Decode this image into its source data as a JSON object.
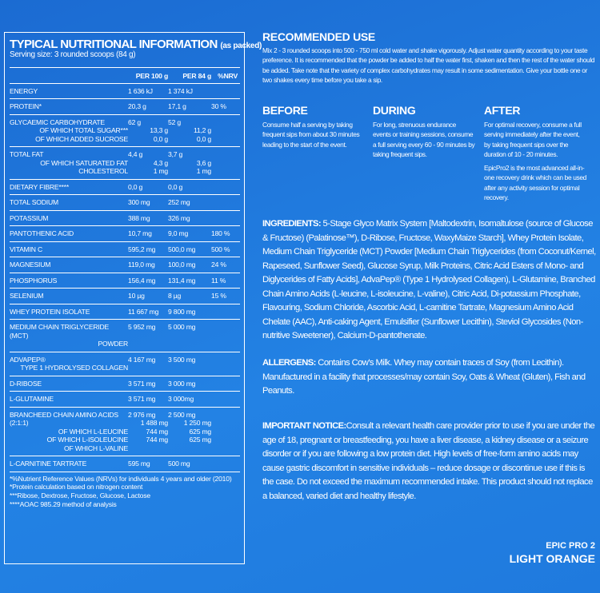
{
  "nutrition": {
    "title": "TYPICAL NUTRITIONAL INFORMATION",
    "title_note": "(as packed)",
    "serving": "Serving size: 3 rounded scoops (84 g)",
    "columns": [
      "PER 100 g",
      "PER 84 g",
      "%NRV"
    ],
    "groups": [
      [
        {
          "label": "ENERGY",
          "per_100g": "1 636 kJ",
          "per_84g": "1 374 kJ"
        }
      ],
      [
        {
          "label": "PROTEIN*",
          "per_100g": "20,3 g",
          "per_84g": "17,1 g",
          "nrv": "30 %"
        }
      ],
      [
        {
          "label": "GLYCAEMIC CARBOHYDRATE",
          "per_100g": "62 g",
          "per_84g": "52 g"
        },
        {
          "label": "OF WHICH TOTAL SUGAR***",
          "per_100g": "13,3 g",
          "per_84g": "11,2 g"
        },
        {
          "label": "OF WHICH ADDED SUCROSE",
          "per_100g": "0,0 g",
          "per_84g": "0,0 g"
        }
      ],
      [
        {
          "label": "TOTAL FAT",
          "per_100g": "4,4 g",
          "per_84g": "3,7 g"
        },
        {
          "label": "OF WHICH SATURATED FAT",
          "per_100g": "4,3 g",
          "per_84g": "3,6 g"
        },
        {
          "label": "CHOLESTEROL",
          "per_100g": "1 mg",
          "per_84g": "1 mg"
        }
      ],
      [
        {
          "label": "DIETARY FIBRE****",
          "per_100g": "0,0 g",
          "per_84g": "0,0 g"
        }
      ],
      [
        {
          "label": "TOTAL SODIUM",
          "per_100g": "300 mg",
          "per_84g": "252 mg"
        }
      ],
      [
        {
          "label": "POTASSIUM",
          "per_100g": "388 mg",
          "per_84g": "326 mg"
        }
      ],
      [
        {
          "label": "PANTOTHENIC ACID",
          "per_100g": "10,7 mg",
          "per_84g": "9,0 mg",
          "nrv": "180 %"
        }
      ],
      [
        {
          "label": "VITAMIN C",
          "per_100g": "595,2 mg",
          "per_84g": "500,0 mg",
          "nrv": "500 %"
        }
      ],
      [
        {
          "label": "MAGNESIUM",
          "per_100g": "119,0 mg",
          "per_84g": "100,0 mg",
          "nrv": "24 %"
        }
      ],
      [
        {
          "label": "PHOSPHORUS",
          "per_100g": "156,4 mg",
          "per_84g": "131,4 mg",
          "nrv": "11 %"
        }
      ],
      [
        {
          "label": "SELENIUM",
          "per_100g": "10 µg",
          "per_84g": "8 µg",
          "nrv": "15 %"
        }
      ],
      [
        {
          "label": "WHEY PROTEIN ISOLATE",
          "per_100g": "11 667 mg",
          "per_84g": "9 800 mg"
        }
      ],
      [
        {
          "label": "MEDIUM CHAIN TRIGLYCERIDE (MCT)",
          "label_continued": "POWDER",
          "per_100g": "5 952 mg",
          "per_84g": "5 000 mg"
        }
      ],
      [
        {
          "label": "ADVAPEP®",
          "label_continued": "TYPE 1 HYDROLYSED COLLAGEN",
          "per_100g": "4 167 mg",
          "per_84g": "3 500 mg"
        }
      ],
      [
        {
          "label": "D-RIBOSE",
          "per_100g": "3 571 mg",
          "per_84g": "3 000 mg"
        }
      ],
      [
        {
          "label": "L-GLUTAMINE",
          "per_100g": "3 571 mg",
          "per_84g": "3 000mg"
        }
      ],
      [
        {
          "label": "BRANCHEED CHAIN AMINO ACIDS (2:1:1)",
          "per_100g": "2 976 mg",
          "per_84g": "2 500 mg"
        },
        {
          "label": "OF WHICH L-LEUCINE",
          "per_100g": "1 488 mg",
          "per_84g": "1 250 mg"
        },
        {
          "label": "OF WHICH L-ISOLEUCINE",
          "per_100g": "744 mg",
          "per_84g": "625 mg"
        },
        {
          "label": "OF WHICH L-VALINE",
          "per_100g": "744 mg",
          "per_84g": "625 mg"
        }
      ],
      [
        {
          "label": "L-CARNITINE TARTRATE",
          "per_100g": "595 mg",
          "per_84g": "500 mg"
        }
      ]
    ],
    "footnotes": [
      "*%Nutrient Reference Values (NRVs) for individuals 4 years and older (2010)",
      "*Protein calculation based on nitrogen content",
      "***Ribose, Dextrose, Fructose, Glucose, Lactose",
      "****AOAC 985.29 method of analysis"
    ]
  },
  "recommended_use": {
    "title": "RECOMMENDED USE",
    "text": "Mix 2 - 3 rounded scoops into 500 - 750 ml cold water and shake vigorously. Adjust water quantity according to your taste preference. It is recommended that the powder be added to half the water first, shaken and then the rest of the water should be added. Take note that the variety of complex carbohydrates may result in some sedimentation. Give your bottle one or two shakes every time before you take a sip.",
    "phases": [
      {
        "title": "BEFORE",
        "text": "Consume half a serving by taking frequent sips from about 30 minutes leading to the start of the event."
      },
      {
        "title": "DURING",
        "text": "For long, strenuous endurance events or training sessions, consume a full serving every 60 - 90 minutes by taking frequent sips."
      },
      {
        "title": "AFTER",
        "text": "For optimal recovery, consume a full serving immediately after the event, by taking frequent sips over the duration of 10 - 20 minutes.",
        "note": "EpicPro2 is the most advanced all-in-one recovery drink which can be used after any activity session for optimal recovery."
      }
    ]
  },
  "ingredients": {
    "label": "INGREDIENTS:",
    "text": "5-Stage Glyco Matrix System [Maltodextrin, Isomaltulose (source of Glucose & Fructose) (Palatinose™), D-Ribose, Fructose, WaxyMaize Starch], Whey Protein Isolate, Medium Chain Triglyceride (MCT) Powder [Medium Chain Triglycerides (from Coconut/Kernel, Rapeseed, Sunflower Seed), Glucose Syrup, Milk Proteins, Citric Acid Esters of Mono- and Diglycerides of Fatty Acids], AdvaPep® (Type 1 Hydrolysed Collagen), L-Glutamine, Branched Chain Amino Acids (L-leucine, L-isoleucine, L-valine), Citric Acid, Di-potassium Phosphate, Flavouring, Sodium Chloride, Ascorbic Acid, L-carnitine Tartrate, Magnesium Amino Acid Chelate (AAC), Anti-caking Agent, Emulsifier (Sunflower Lecithin), Steviol Glycosides (Non-nutritive Sweetener), Calcium-D-pantothenate."
  },
  "allergens": {
    "label": "ALLERGENS:",
    "text": "Contains Cow's Milk. Whey may contain traces of  Soy (from Lecithin). Manufactured in a facility that processes/may contain Soy, Oats & Wheat (Gluten), Fish and Peanuts."
  },
  "important_notice": {
    "label": "IMPORTANT NOTICE:",
    "text": "Consult a relevant health care provider prior to use if you are under the age of 18, pregnant or breastfeeding, you have a liver disease, a kidney disease or a seizure disorder or if you are following a low protein diet. High levels of free-form amino acids may cause gastric discomfort in sensitive individuals – reduce dosage or discontinue use if this is the case. Do not exceed the maximum recommended intake. This product should not replace a balanced, varied diet and healthy lifestyle."
  },
  "product": {
    "name": "EPIC PRO 2",
    "flavour": "LIGHT ORANGE"
  }
}
